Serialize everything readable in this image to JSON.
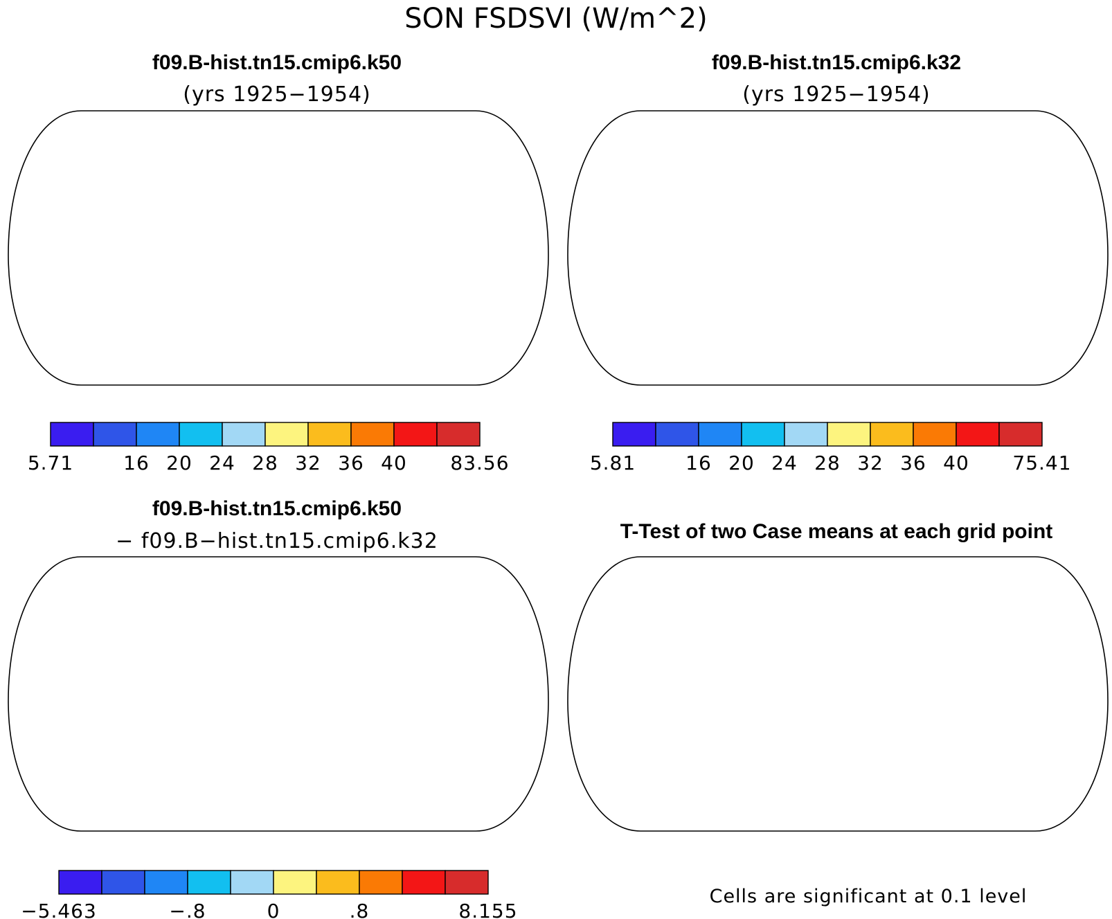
{
  "figure": {
    "title": "SON FSDSVI (W/m^2)"
  },
  "panels": [
    {
      "id": "case1",
      "title": "f09.B-hist.tn15.cmip6.k50",
      "subtitle": "(yrs 1925−1954)",
      "colorbar": {
        "colors": [
          "#3a1df0",
          "#2f55e8",
          "#1f86f5",
          "#12bff0",
          "#a2d8f5",
          "#fdf47f",
          "#fbbc1d",
          "#fa7a05",
          "#f31616",
          "#d72c2c"
        ],
        "tick_labels": [
          "5.71",
          "",
          "16",
          "20",
          "24",
          "28",
          "32",
          "36",
          "40",
          "",
          "83.56"
        ]
      }
    },
    {
      "id": "case2",
      "title": "f09.B-hist.tn15.cmip6.k32",
      "subtitle": "(yrs 1925−1954)",
      "colorbar": {
        "colors": [
          "#3a1df0",
          "#2f55e8",
          "#1f86f5",
          "#12bff0",
          "#a2d8f5",
          "#fdf47f",
          "#fbbc1d",
          "#fa7a05",
          "#f31616",
          "#d72c2c"
        ],
        "tick_labels": [
          "5.81",
          "",
          "16",
          "20",
          "24",
          "28",
          "32",
          "36",
          "40",
          "",
          "75.41"
        ]
      }
    },
    {
      "id": "diff",
      "title": "f09.B-hist.tn15.cmip6.k50",
      "subtitle": "− f09.B−hist.tn15.cmip6.k32",
      "colorbar": {
        "colors": [
          "#3a1df0",
          "#2f55e8",
          "#1f86f5",
          "#12bff0",
          "#a2d8f5",
          "#fdf47f",
          "#fbbc1d",
          "#fa7a05",
          "#f31616",
          "#d72c2c"
        ],
        "tick_labels": [
          "−5.463",
          "",
          "",
          "−.8",
          "",
          "0",
          "",
          ".8",
          "",
          "",
          "8.155"
        ]
      }
    },
    {
      "id": "ttest",
      "title": "T-Test of two Case means at each grid point",
      "note": "Cells are significant at 0.1 level",
      "colorbar": null
    }
  ],
  "map_colors": {
    "ocean": "#ffffff",
    "significant": "#ee0000",
    "not_significant": "#ffffff"
  }
}
